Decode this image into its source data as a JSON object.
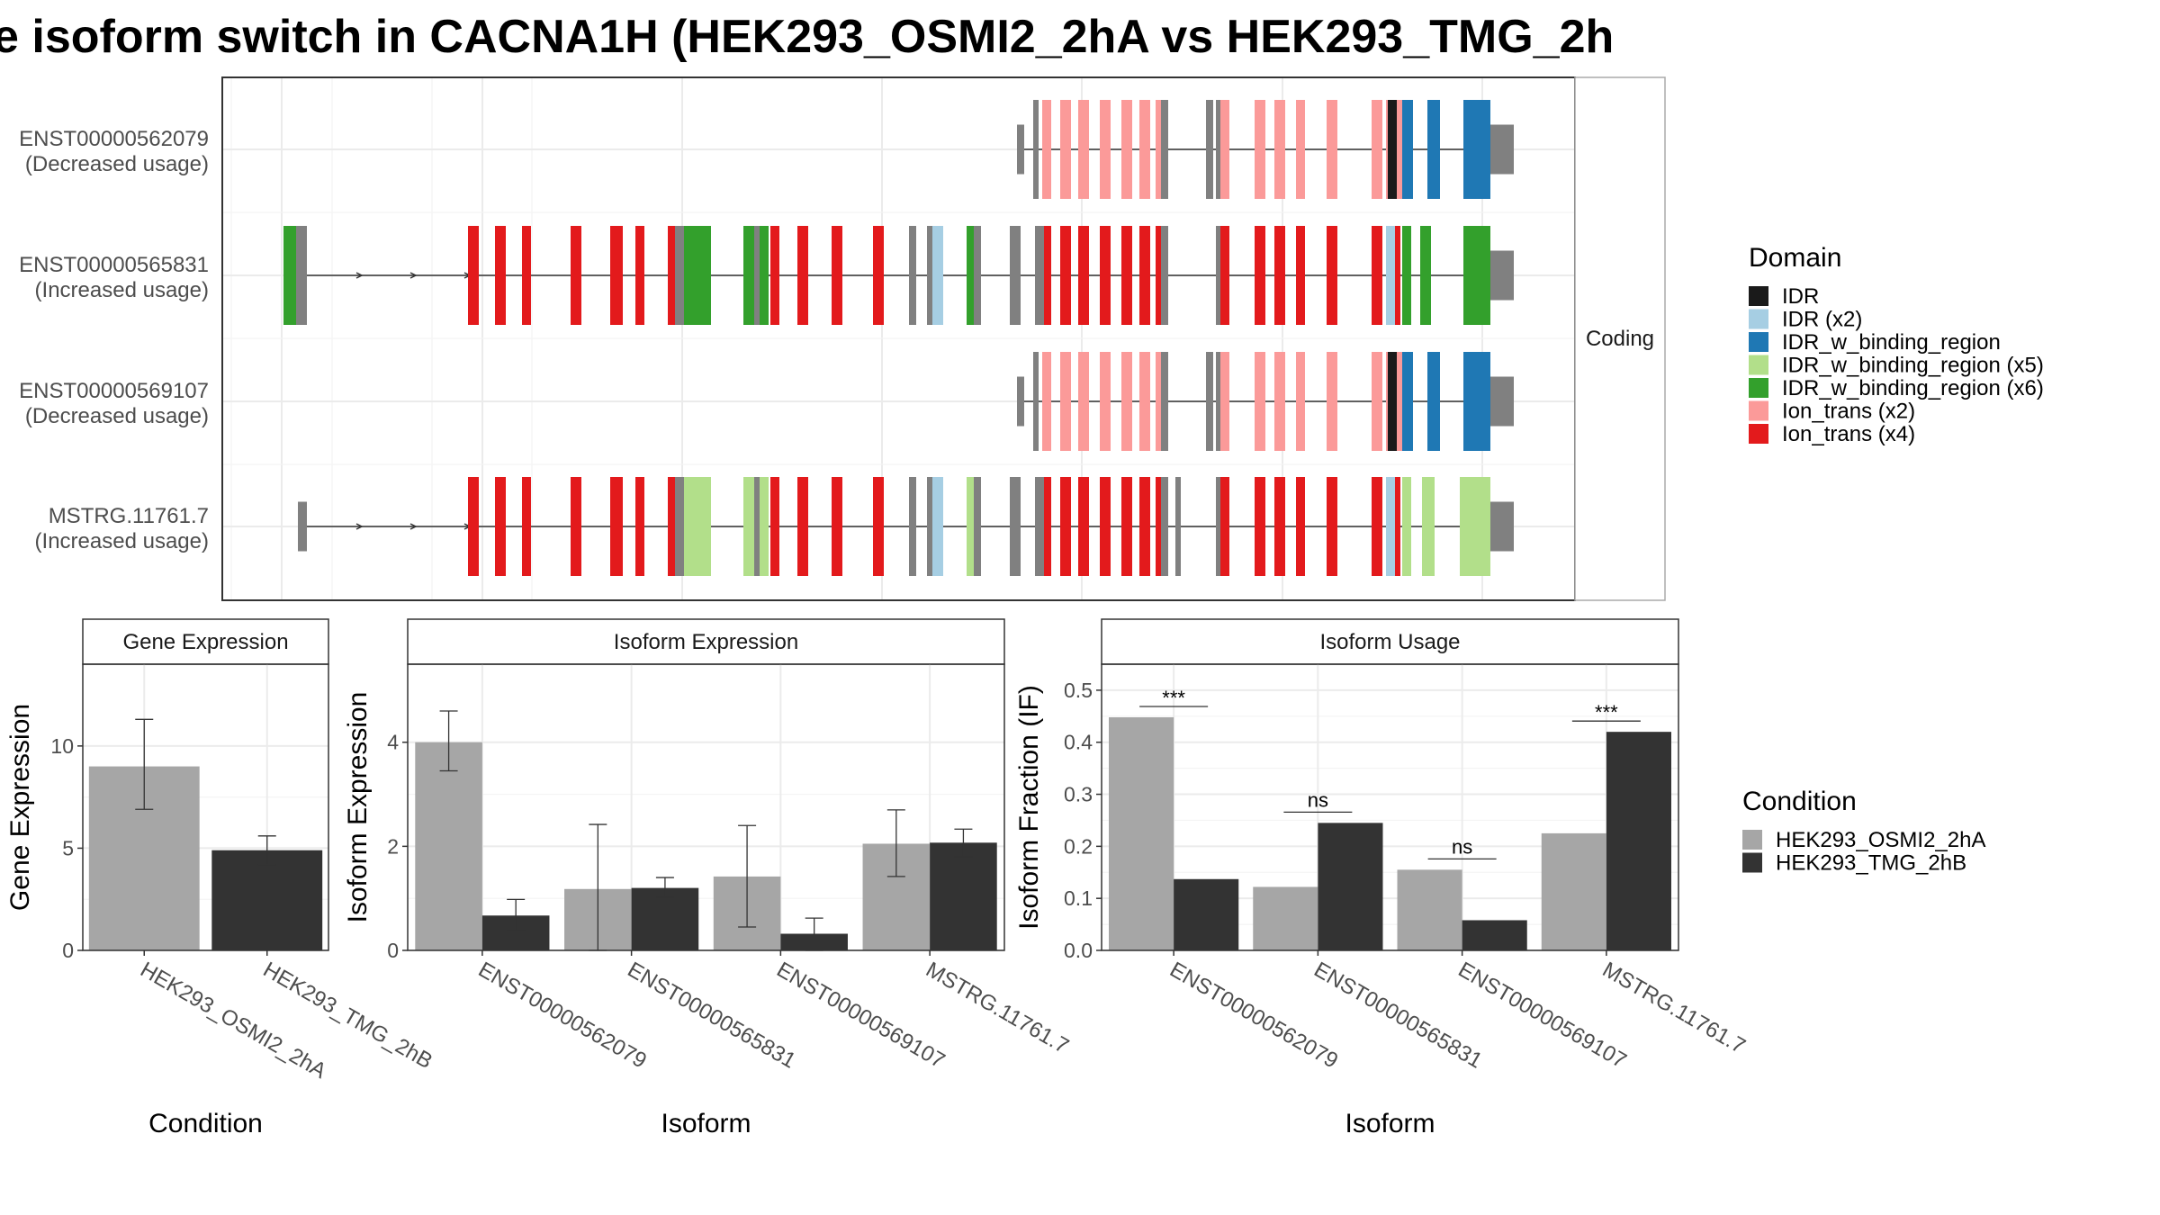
{
  "title": "e isoform switch in CACNA1H (HEK293_OSMI2_2hA vs HEK293_TMG_2h",
  "colors": {
    "IDR": "#1a1a1a",
    "IDR (x2)": "#a6cee3",
    "IDR_w_binding_region": "#1f78b4",
    "IDR_w_binding_region (x5)": "#b2df8a",
    "IDR_w_binding_region (x6)": "#33a02c",
    "Ion_trans (x2)": "#fb9a99",
    "Ion_trans (x4)": "#e31a1c",
    "utr": "#808080",
    "cond1": "#a6a6a6",
    "cond2": "#333333"
  },
  "structure": {
    "strip_label": "Coding",
    "transcripts": [
      {
        "id": "ENST00000562079",
        "usage": "(Decreased usage)"
      },
      {
        "id": "ENST00000565831",
        "usage": "(Increased usage)"
      },
      {
        "id": "ENST00000569107",
        "usage": "(Decreased usage)"
      },
      {
        "id": "MSTRG.11761.7",
        "usage": "(Increased usage)"
      }
    ]
  },
  "legend_domain": {
    "title": "Domain",
    "items": [
      "IDR",
      "IDR (x2)",
      "IDR_w_binding_region",
      "IDR_w_binding_region (x5)",
      "IDR_w_binding_region (x6)",
      "Ion_trans (x2)",
      "Ion_trans (x4)"
    ]
  },
  "legend_condition": {
    "title": "Condition",
    "items": [
      "HEK293_OSMI2_2hA",
      "HEK293_TMG_2hB"
    ]
  },
  "chart_data": [
    {
      "type": "bar",
      "title": "Gene Expression",
      "xlabel": "Condition",
      "ylabel": "Gene Expression",
      "ylim": [
        0,
        14
      ],
      "yticks": [
        0,
        5,
        10
      ],
      "categories": [
        "HEK293_OSMI2_2hA",
        "HEK293_TMG_2hB"
      ],
      "values": [
        9.0,
        4.9
      ],
      "errors": [
        [
          6.9,
          11.3
        ],
        [
          4.2,
          5.6
        ]
      ]
    },
    {
      "type": "bar",
      "title": "Isoform Expression",
      "xlabel": "Isoform",
      "ylabel": "Isoform Expression",
      "ylim": [
        0,
        5.5
      ],
      "yticks": [
        0,
        2,
        4
      ],
      "categories": [
        "ENST00000562079",
        "ENST00000565831",
        "ENST00000569107",
        "MSTRG.11761.7"
      ],
      "series": [
        {
          "name": "HEK293_OSMI2_2hA",
          "values": [
            4.0,
            1.18,
            1.42,
            2.05
          ],
          "errors": [
            [
              3.45,
              4.6
            ],
            [
              0.0,
              2.42
            ],
            [
              0.45,
              2.4
            ],
            [
              1.42,
              2.7
            ]
          ]
        },
        {
          "name": "HEK293_TMG_2hB",
          "values": [
            0.67,
            1.2,
            0.32,
            2.07
          ],
          "errors": [
            [
              0.38,
              0.98
            ],
            [
              1.02,
              1.4
            ],
            [
              0.0,
              0.62
            ],
            [
              1.8,
              2.33
            ]
          ]
        }
      ]
    },
    {
      "type": "bar",
      "title": "Isoform Usage",
      "xlabel": "Isoform",
      "ylabel": "Isoform Fraction (IF)",
      "ylim": [
        0,
        0.55
      ],
      "yticks": [
        0.0,
        0.1,
        0.2,
        0.3,
        0.4,
        0.5
      ],
      "categories": [
        "ENST00000562079",
        "ENST00000565831",
        "ENST00000569107",
        "MSTRG.11761.7"
      ],
      "series": [
        {
          "name": "HEK293_OSMI2_2hA",
          "values": [
            0.448,
            0.122,
            0.155,
            0.225
          ]
        },
        {
          "name": "HEK293_TMG_2hB",
          "values": [
            0.137,
            0.245,
            0.058,
            0.42
          ]
        }
      ],
      "significance": [
        "***",
        "ns",
        "ns",
        "***"
      ]
    }
  ]
}
